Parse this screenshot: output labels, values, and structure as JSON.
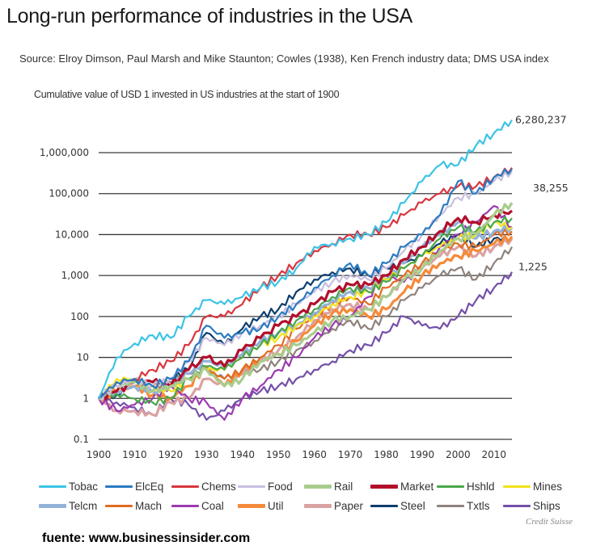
{
  "header": {
    "title": "Long-run performance of industries in the USA",
    "source": "Source: Elroy Dimson, Paul Marsh and Mike Staunton; Cowles (1938), Ken French industry data; DMS USA index",
    "subtitle": "Cumulative value of USD 1 invested in US industries at the start of 1900"
  },
  "footer": {
    "credit": "Credit Suisse",
    "source_note": "fuente: www.businessinsider.com"
  },
  "chart_data": {
    "type": "line",
    "title": "Long-run performance of industries in the USA",
    "xlabel": "",
    "ylabel": "Cumulative value of USD 1 invested in US industries at the start of 1900",
    "yscale": "log",
    "ylim": [
      0.1,
      6280237
    ],
    "xlim": [
      1900,
      2015
    ],
    "grid": "horizontal",
    "legend_position": "bottom",
    "yticks": [
      0.1,
      1,
      10,
      100,
      1000,
      10000,
      100000,
      1000000
    ],
    "ytick_labels": [
      "0.1",
      "1",
      "10",
      "100",
      "1,000",
      "10,000",
      "100,000",
      "1,000,000"
    ],
    "xticks": [
      1900,
      1910,
      1920,
      1930,
      1940,
      1950,
      1960,
      1970,
      1980,
      1990,
      2000,
      2010
    ],
    "xtick_labels": [
      "1900",
      "1910",
      "1920",
      "1930",
      "1940",
      "1950",
      "1960",
      "1970",
      "1980",
      "1990",
      "2000",
      "2010"
    ],
    "annotations": [
      {
        "text": "6,280,237",
        "series": "Tobac",
        "x": 2015,
        "y": 6280237
      },
      {
        "text": "38,255",
        "series": "Market",
        "x": 2015,
        "y": 38255
      },
      {
        "text": "1,225",
        "series": "Ships",
        "x": 2015,
        "y": 1225
      }
    ],
    "x": [
      1900,
      1905,
      1910,
      1915,
      1920,
      1925,
      1930,
      1935,
      1940,
      1945,
      1950,
      1955,
      1960,
      1965,
      1970,
      1975,
      1980,
      1985,
      1990,
      1995,
      2000,
      2005,
      2010,
      2015
    ],
    "series": [
      {
        "name": "Tobac",
        "color": "#3cc3e6",
        "values": [
          1,
          10,
          22,
          35,
          30,
          100,
          250,
          200,
          300,
          500,
          700,
          1500,
          5000,
          6000,
          8000,
          10000,
          20000,
          60000,
          200000,
          500000,
          500000,
          1500000,
          3000000,
          6280237
        ]
      },
      {
        "name": "ElcEq",
        "color": "#2a7bc0",
        "values": [
          1,
          2.5,
          3,
          2,
          3,
          8,
          60,
          30,
          40,
          50,
          100,
          200,
          500,
          1000,
          2000,
          1000,
          2000,
          5000,
          10000,
          30000,
          200000,
          100000,
          250000,
          400000
        ]
      },
      {
        "name": "Chems",
        "color": "#d9373f",
        "values": [
          1,
          2.5,
          3,
          5,
          8,
          20,
          100,
          100,
          200,
          500,
          1000,
          2000,
          4000,
          6000,
          10000,
          10000,
          15000,
          30000,
          60000,
          100000,
          150000,
          150000,
          250000,
          430000
        ]
      },
      {
        "name": "Food",
        "color": "#c7bfdf",
        "values": [
          1,
          2,
          3,
          2,
          3,
          8,
          30,
          20,
          40,
          60,
          100,
          200,
          400,
          700,
          1000,
          800,
          1500,
          4000,
          10000,
          30000,
          80000,
          100000,
          200000,
          350000
        ]
      },
      {
        "name": "Rail",
        "color": "#a8cc8e",
        "values": [
          1,
          2,
          2.5,
          1.5,
          2,
          3,
          5,
          2,
          3,
          8,
          12,
          20,
          40,
          80,
          100,
          150,
          300,
          800,
          1500,
          4000,
          8000,
          10000,
          30000,
          60000
        ]
      },
      {
        "name": "Market",
        "color": "#b2102c",
        "values": [
          1,
          1.5,
          2.5,
          2.5,
          2,
          5,
          10,
          6,
          15,
          30,
          60,
          100,
          200,
          400,
          600,
          600,
          1000,
          2500,
          5000,
          12000,
          25000,
          20000,
          30000,
          38255
        ]
      },
      {
        "name": "Hshld",
        "color": "#4aa64a",
        "values": [
          1,
          1.3,
          1,
          0.8,
          1,
          3,
          6,
          5,
          10,
          20,
          40,
          80,
          150,
          300,
          500,
          400,
          700,
          1500,
          3000,
          8000,
          15000,
          12000,
          20000,
          25000
        ]
      },
      {
        "name": "Mines",
        "color": "#f2e21a",
        "values": [
          1,
          3,
          3,
          2,
          1.5,
          3,
          5,
          5,
          10,
          20,
          30,
          60,
          100,
          200,
          300,
          400,
          800,
          1500,
          3000,
          5000,
          8000,
          10000,
          20000,
          15000
        ]
      },
      {
        "name": "Telcm",
        "color": "#93b2d8",
        "values": [
          1,
          1.5,
          2,
          1.5,
          2,
          4,
          8,
          6,
          12,
          25,
          40,
          60,
          120,
          250,
          400,
          500,
          800,
          2000,
          5000,
          10000,
          20000,
          8000,
          12000,
          15000
        ]
      },
      {
        "name": "Mach",
        "color": "#e06c22",
        "values": [
          1,
          2,
          3,
          2,
          2,
          3,
          5,
          3,
          5,
          10,
          20,
          50,
          100,
          200,
          300,
          200,
          500,
          1000,
          2000,
          4000,
          6000,
          5000,
          10000,
          12000
        ]
      },
      {
        "name": "Coal",
        "color": "#9b3bb0",
        "values": [
          1,
          0.5,
          0.7,
          1,
          2,
          1,
          0.8,
          0.3,
          1,
          2,
          5,
          10,
          30,
          60,
          100,
          300,
          1000,
          700,
          1500,
          5000,
          10000,
          20000,
          50000,
          15000
        ]
      },
      {
        "name": "Util",
        "color": "#f58a3a",
        "values": [
          1,
          1.5,
          2,
          1.2,
          1,
          2,
          6,
          2,
          5,
          8,
          12,
          25,
          60,
          120,
          150,
          100,
          150,
          400,
          1000,
          2000,
          3000,
          4000,
          6000,
          9000
        ]
      },
      {
        "name": "Paper",
        "color": "#dba2a2",
        "values": [
          1,
          0.5,
          0.5,
          0.4,
          0.8,
          1,
          3,
          2,
          4,
          8,
          15,
          30,
          80,
          150,
          200,
          150,
          300,
          800,
          1500,
          3000,
          5000,
          3000,
          5000,
          8000
        ]
      },
      {
        "name": "Steel",
        "color": "#0d3d6e",
        "values": [
          1,
          1.2,
          3,
          2,
          3,
          5,
          40,
          20,
          50,
          100,
          150,
          400,
          800,
          1200,
          1500,
          1000,
          1500,
          2000,
          3000,
          6000,
          10000,
          5000,
          8000,
          8000
        ]
      },
      {
        "name": "Txtls",
        "color": "#8f827c",
        "values": [
          1,
          1.5,
          2,
          1.5,
          2.5,
          4,
          5,
          3,
          4,
          5,
          8,
          15,
          25,
          50,
          80,
          50,
          100,
          250,
          500,
          1000,
          1500,
          800,
          2000,
          5000
        ]
      },
      {
        "name": "Ships",
        "color": "#7450a8",
        "values": [
          1,
          0.8,
          0.6,
          0.4,
          1,
          0.7,
          0.3,
          0.5,
          1,
          1.5,
          2,
          3,
          5,
          8,
          15,
          20,
          40,
          100,
          60,
          50,
          100,
          250,
          500,
          1225
        ]
      }
    ]
  },
  "legend": [
    [
      {
        "label": "Tobac",
        "color": "#3cc3e6"
      },
      {
        "label": "ElcEq",
        "color": "#2a7bc0"
      },
      {
        "label": "Chems",
        "color": "#d9373f"
      },
      {
        "label": "Food",
        "color": "#c7bfdf"
      },
      {
        "label": "Rail",
        "color": "#a8cc8e"
      },
      {
        "label": "Market",
        "color": "#b2102c"
      },
      {
        "label": "Hshld",
        "color": "#4aa64a"
      },
      {
        "label": "Mines",
        "color": "#f2e21a"
      }
    ],
    [
      {
        "label": "Telcm",
        "color": "#93b2d8"
      },
      {
        "label": "Mach",
        "color": "#e06c22"
      },
      {
        "label": "Coal",
        "color": "#9b3bb0"
      },
      {
        "label": "Util",
        "color": "#f58a3a"
      },
      {
        "label": "Paper",
        "color": "#dba2a2"
      },
      {
        "label": "Steel",
        "color": "#0d3d6e"
      },
      {
        "label": "Txtls",
        "color": "#8f827c"
      },
      {
        "label": "Ships",
        "color": "#7450a8"
      }
    ]
  ]
}
